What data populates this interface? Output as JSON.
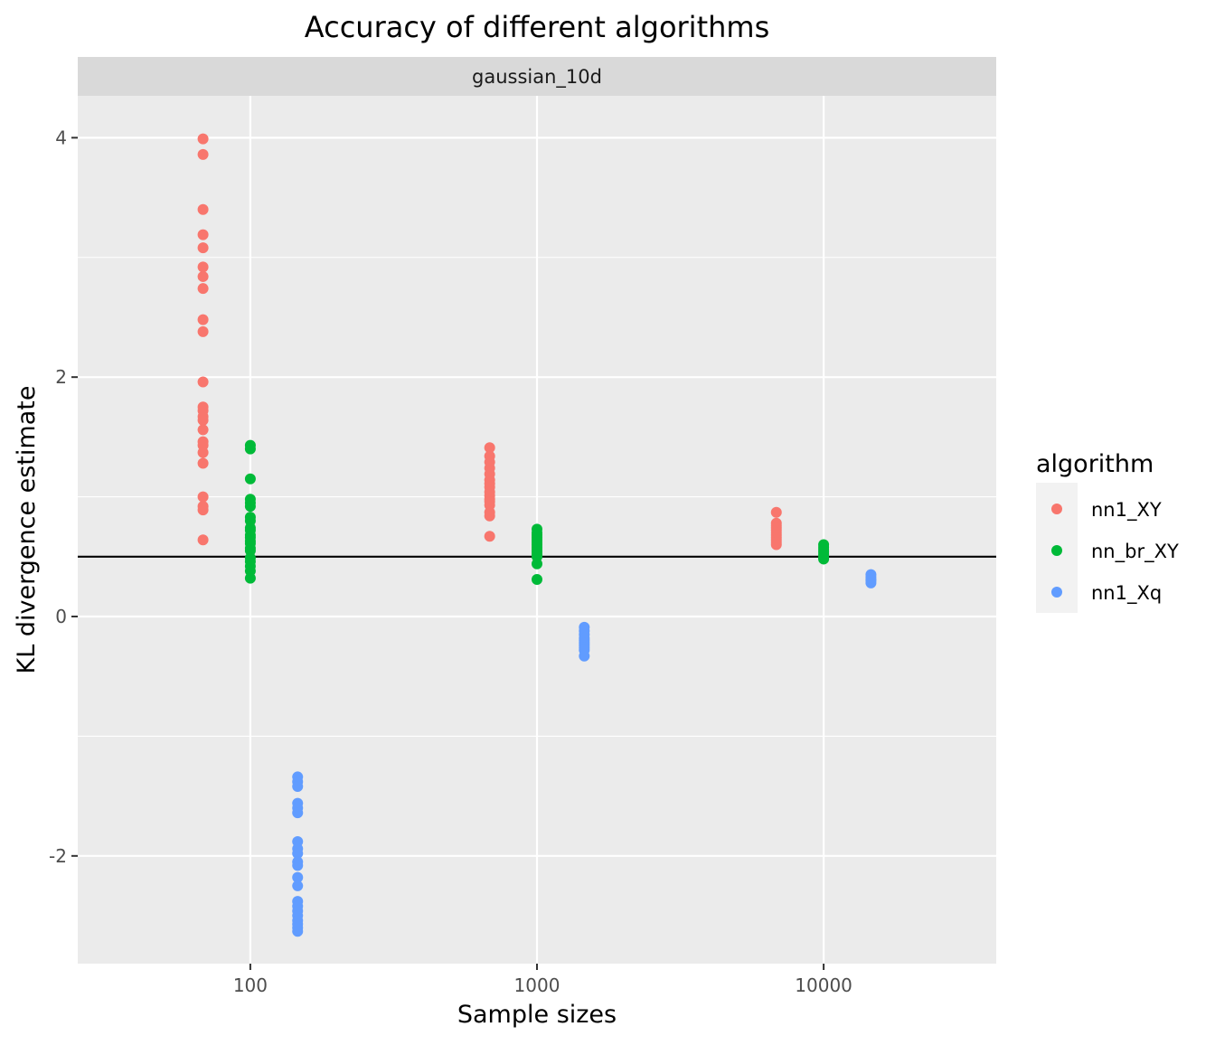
{
  "chart_data": {
    "type": "scatter",
    "title": "Accuracy of different algorithms",
    "facet": "gaussian_10d",
    "xlabel": "Sample sizes",
    "ylabel": "KL divergence estimate",
    "x_scale": "log10",
    "x_ticks": [
      100,
      1000,
      10000
    ],
    "x_tick_labels": [
      "100",
      "1000",
      "10000"
    ],
    "y_ticks": [
      -2,
      0,
      2,
      4
    ],
    "y_tick_labels": [
      "-2",
      "0",
      "2",
      "4"
    ],
    "xlim": [
      25,
      40000
    ],
    "ylim": [
      -2.9,
      4.35
    ],
    "reference_line": 0.5,
    "grid": true,
    "legend": {
      "title": "algorithm",
      "position": "right"
    },
    "series": [
      {
        "name": "nn1_XY",
        "color": "#F8766D",
        "points": [
          {
            "x": 100,
            "y": [
              3.99,
              3.86,
              3.4,
              3.19,
              3.08,
              2.92,
              2.84,
              2.74,
              2.48,
              2.38,
              1.96,
              1.75,
              1.72,
              1.67,
              1.64,
              1.56,
              1.46,
              1.43,
              1.37,
              1.28,
              1.0,
              0.92,
              0.89,
              0.64
            ]
          },
          {
            "x": 1000,
            "y": [
              1.41,
              1.34,
              1.29,
              1.24,
              1.19,
              1.14,
              1.11,
              1.08,
              1.04,
              1.01,
              0.98,
              0.96,
              0.93,
              0.87,
              0.84,
              0.67
            ]
          },
          {
            "x": 10000,
            "y": [
              0.87,
              0.78,
              0.76,
              0.74,
              0.72,
              0.7,
              0.68,
              0.66,
              0.64,
              0.62,
              0.6
            ]
          }
        ]
      },
      {
        "name": "nn_br_XY",
        "color": "#00BA38",
        "points": [
          {
            "x": 100,
            "y": [
              1.43,
              1.4,
              1.15,
              0.98,
              0.95,
              0.92,
              0.83,
              0.8,
              0.74,
              0.72,
              0.68,
              0.66,
              0.63,
              0.61,
              0.57,
              0.55,
              0.49,
              0.46,
              0.42,
              0.38,
              0.32
            ]
          },
          {
            "x": 1000,
            "y": [
              0.73,
              0.7,
              0.68,
              0.66,
              0.64,
              0.62,
              0.6,
              0.58,
              0.56,
              0.54,
              0.52,
              0.5,
              0.44,
              0.31
            ]
          },
          {
            "x": 10000,
            "y": [
              0.6,
              0.58,
              0.56,
              0.54,
              0.52,
              0.5,
              0.49,
              0.48
            ]
          }
        ]
      },
      {
        "name": "nn1_Xq",
        "color": "#619CFF",
        "points": [
          {
            "x": 100,
            "y": [
              -1.34,
              -1.38,
              -1.42,
              -1.56,
              -1.6,
              -1.64,
              -1.88,
              -1.94,
              -1.98,
              -2.05,
              -2.08,
              -2.18,
              -2.25,
              -2.38,
              -2.42,
              -2.46,
              -2.5,
              -2.54,
              -2.57,
              -2.6,
              -2.63
            ]
          },
          {
            "x": 1000,
            "y": [
              -0.09,
              -0.12,
              -0.15,
              -0.18,
              -0.2,
              -0.22,
              -0.24,
              -0.26,
              -0.28,
              -0.33
            ]
          },
          {
            "x": 10000,
            "y": [
              0.35,
              0.33,
              0.31,
              0.3,
              0.28
            ]
          }
        ]
      }
    ]
  }
}
